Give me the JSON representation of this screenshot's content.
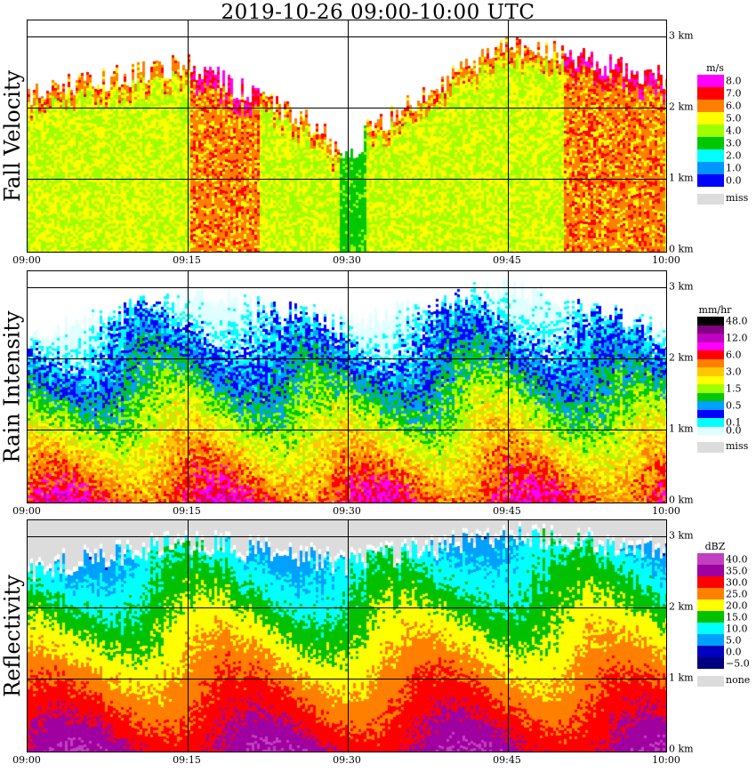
{
  "title": "2019-10-26   09:00-10:00 UTC",
  "x_ticks": [
    "09:00",
    "09:15",
    "09:30",
    "09:45",
    "10:00"
  ],
  "y_ticks": [
    "3 km",
    "2 km",
    "1 km",
    "0 km"
  ],
  "panels": [
    {
      "name": "fall-velocity",
      "ylabel": "Fall Velocity",
      "unit": "m/s",
      "levels": [
        "8.0",
        "7.0",
        "6.0",
        "5.0",
        "4.0",
        "3.0",
        "2.0",
        "1.0",
        "0.0"
      ],
      "colors": [
        "#ff00ff",
        "#ff0000",
        "#ff7f00",
        "#ffff00",
        "#9fff00",
        "#00c800",
        "#00ffff",
        "#0096ff",
        "#0000ff"
      ],
      "missing_label": "miss"
    },
    {
      "name": "rain-intensity",
      "ylabel": "Rain Intensity",
      "unit": "mm/hr",
      "levels": [
        "48.0",
        "",
        "12.0",
        "",
        "6.0",
        "",
        "3.0",
        "",
        "1.5",
        "",
        "0.5",
        "",
        "0.1",
        "0.0"
      ],
      "colors": [
        "#000000",
        "#800080",
        "#c000c0",
        "#ff00ff",
        "#ff0000",
        "#ff7f00",
        "#ffc800",
        "#ffff00",
        "#9fff00",
        "#00c800",
        "#00a0ff",
        "#0000ff",
        "#00ffff",
        "#e0ffff"
      ],
      "missing_label": "miss"
    },
    {
      "name": "reflectivity",
      "ylabel": "Reflectivity",
      "unit": "dBZ",
      "levels": [
        "40.0",
        "35.0",
        "30.0",
        "25.0",
        "20.0",
        "15.0",
        "10.0",
        "5.0",
        "0.0",
        "−5.0"
      ],
      "colors": [
        "#c040c0",
        "#a000a0",
        "#ff0000",
        "#ff7f00",
        "#ffff00",
        "#00c000",
        "#00ffff",
        "#00a0ff",
        "#0000c0",
        "#000080"
      ],
      "missing_label": "none"
    }
  ],
  "chart_data": [
    {
      "type": "heatmap",
      "title": "2019-10-26   09:00-10:00 UTC",
      "ylabel": "Fall Velocity",
      "units": "m/s",
      "x": [
        "09:00",
        "09:15",
        "09:30",
        "09:45",
        "10:00"
      ],
      "y_km": [
        0,
        1,
        2,
        3
      ],
      "colorbar": [
        8.0,
        7.0,
        6.0,
        5.0,
        4.0,
        3.0,
        2.0,
        1.0,
        0.0
      ],
      "echo_top_km_approx": [
        [
          "09:00",
          2.2
        ],
        [
          "09:15",
          2.6
        ],
        [
          "09:30",
          1.5
        ],
        [
          "09:45",
          2.9
        ],
        [
          "10:00",
          2.4
        ]
      ],
      "dominant_value_m_s": 5.0
    },
    {
      "type": "heatmap",
      "ylabel": "Rain Intensity",
      "units": "mm/hr",
      "x": [
        "09:00",
        "09:15",
        "09:30",
        "09:45",
        "10:00"
      ],
      "y_km": [
        0,
        1,
        2,
        3
      ],
      "colorbar": [
        48.0,
        12.0,
        6.0,
        3.0,
        1.5,
        0.5,
        0.1,
        0.0
      ],
      "echo_top_km_approx": [
        [
          "09:00",
          2.3
        ],
        [
          "09:15",
          2.9
        ],
        [
          "09:30",
          2.5
        ],
        [
          "09:45",
          3.0
        ],
        [
          "10:00",
          2.4
        ]
      ]
    },
    {
      "type": "heatmap",
      "ylabel": "Reflectivity",
      "units": "dBZ",
      "x": [
        "09:00",
        "09:15",
        "09:30",
        "09:45",
        "10:00"
      ],
      "y_km": [
        0,
        1,
        2,
        3
      ],
      "colorbar": [
        40.0,
        35.0,
        30.0,
        25.0,
        20.0,
        15.0,
        10.0,
        5.0,
        0.0,
        -5.0
      ],
      "echo_top_km_approx": [
        [
          "09:00",
          2.5
        ],
        [
          "09:15",
          2.9
        ],
        [
          "09:30",
          2.6
        ],
        [
          "09:45",
          3.0
        ],
        [
          "10:00",
          2.8
        ]
      ]
    }
  ]
}
